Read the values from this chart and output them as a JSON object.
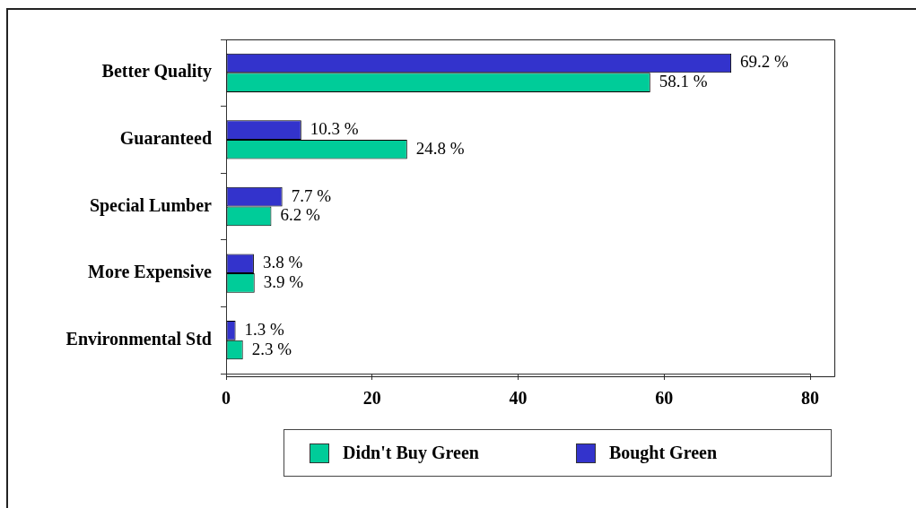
{
  "chart_data": {
    "type": "bar",
    "orientation": "horizontal",
    "categories": [
      "Better Quality",
      "Guaranteed",
      "Special Lumber",
      "More Expensive",
      "Environmental Std"
    ],
    "series": [
      {
        "name": "Didn't Buy Green",
        "color": "#00cc99",
        "values": [
          58.1,
          24.8,
          6.2,
          3.9,
          2.3
        ],
        "value_labels": [
          "58.1 %",
          "24.8 %",
          "6.2 %",
          "3.9 %",
          "2.3 %"
        ]
      },
      {
        "name": "Bought Green",
        "color": "#3333cc",
        "values": [
          69.2,
          10.3,
          7.7,
          3.8,
          1.3
        ],
        "value_labels": [
          "69.2 %",
          "10.3 %",
          "7.7 %",
          "3.8 %",
          "1.3 %"
        ]
      }
    ],
    "xlim": [
      0,
      80
    ],
    "xticks": [
      0,
      20,
      40,
      60,
      80
    ],
    "legend": "bottom"
  }
}
